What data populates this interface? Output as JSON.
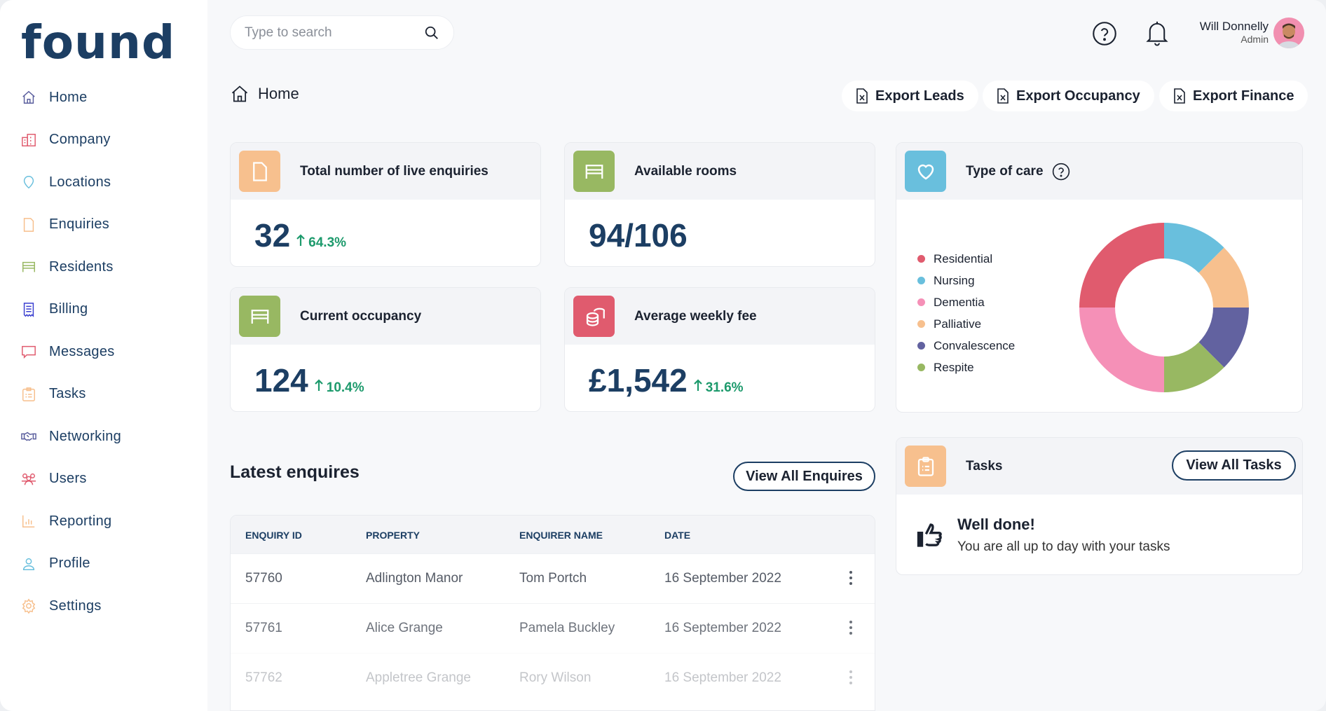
{
  "brand": {
    "logo": "found"
  },
  "sidebar": {
    "items": [
      {
        "label": "Home",
        "icon": "home-icon",
        "color": "#5b5f9e"
      },
      {
        "label": "Company",
        "icon": "building-icon",
        "color": "#e05b6e"
      },
      {
        "label": "Locations",
        "icon": "map-pin-icon",
        "color": "#69bfdd"
      },
      {
        "label": "Enquiries",
        "icon": "document-icon",
        "color": "#f7bf8c"
      },
      {
        "label": "Residents",
        "icon": "bed-icon",
        "color": "#98b862"
      },
      {
        "label": "Billing",
        "icon": "receipt-icon",
        "color": "#3a3fd0"
      },
      {
        "label": "Messages",
        "icon": "chat-icon",
        "color": "#e05b6e"
      },
      {
        "label": "Tasks",
        "icon": "clipboard-icon",
        "color": "#f7bf8c"
      },
      {
        "label": "Networking",
        "icon": "handshake-icon",
        "color": "#5b5f9e"
      },
      {
        "label": "Users",
        "icon": "users-icon",
        "color": "#e05b6e"
      },
      {
        "label": "Reporting",
        "icon": "bar-chart-icon",
        "color": "#f7bf8c"
      },
      {
        "label": "Profile",
        "icon": "user-icon",
        "color": "#69bfdd"
      },
      {
        "label": "Settings",
        "icon": "gear-icon",
        "color": "#f7bf8c"
      }
    ]
  },
  "header": {
    "search_placeholder": "Type to search",
    "user_name": "Will Donnelly",
    "user_role": "Admin"
  },
  "breadcrumb": {
    "label": "Home"
  },
  "exports": [
    "Export Leads",
    "Export Occupancy",
    "Export Finance"
  ],
  "stats": [
    {
      "title": "Total number of live enquiries",
      "value": "32",
      "delta": "64.3%",
      "color": "#f7c08e"
    },
    {
      "title": "Available rooms",
      "value": "94/106",
      "color": "#98b862"
    },
    {
      "title": "Current occupancy",
      "value": "124",
      "delta": "10.4%",
      "color": "#98b862"
    },
    {
      "title": "Average weekly fee",
      "value": "£1,542",
      "delta": "31.6%",
      "color": "#e05b6e"
    }
  ],
  "care": {
    "title": "Type of care",
    "color": "#69bfdd"
  },
  "chart_data": {
    "type": "pie",
    "variant": "donut",
    "legend": "left",
    "categories": [
      "Residential",
      "Nursing",
      "Dementia",
      "Palliative",
      "Convalescence",
      "Respite"
    ],
    "values": [
      25,
      12.5,
      25,
      12.5,
      12.5,
      12.5
    ],
    "colors": [
      "#e05b6e",
      "#69bfdd",
      "#f590b7",
      "#f7c08e",
      "#6262a0",
      "#98b862"
    ]
  },
  "enquiries": {
    "title": "Latest enquires",
    "view_all": "View All Enquires",
    "columns": [
      "ENQUIRY ID",
      "PROPERTY",
      "ENQUIRER NAME",
      "DATE"
    ],
    "rows": [
      [
        "57760",
        "Adlington Manor",
        "Tom Portch",
        "16 September 2022"
      ],
      [
        "57761",
        "Alice Grange",
        "Pamela Buckley",
        "16 September 2022"
      ],
      [
        "57762",
        "Appletree Grange",
        "Rory Wilson",
        "16 September 2022"
      ]
    ]
  },
  "tasks": {
    "title": "Tasks",
    "view_all": "View All Tasks",
    "heading": "Well done!",
    "message": "You are all up to day with your tasks",
    "color": "#f7c08e"
  }
}
